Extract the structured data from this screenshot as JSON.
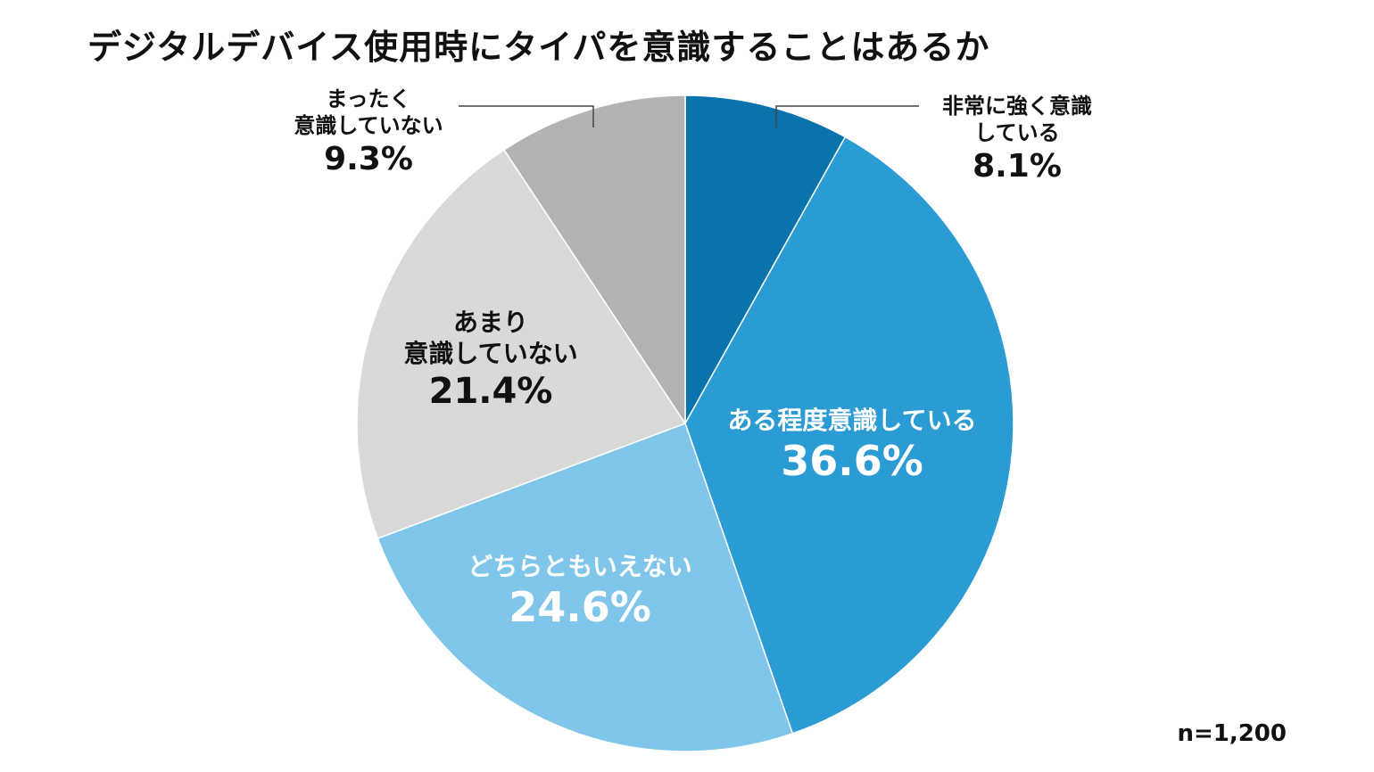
{
  "chart_data": {
    "type": "pie",
    "title": "デジタルデバイス使用時にタイパを意識することはあるか",
    "sample_size": "n=1,200",
    "slices": [
      {
        "label_lines": [
          "非常に強く意識",
          "している"
        ],
        "value": 8.1,
        "value_text": "8.1%",
        "color": "#0874ab"
      },
      {
        "label_lines": [
          "ある程度意識している"
        ],
        "value": 36.6,
        "value_text": "36.6%",
        "color": "#2b9bd4"
      },
      {
        "label_lines": [
          "どちらともいえない"
        ],
        "value": 24.6,
        "value_text": "24.6%",
        "color": "#7fc6ea"
      },
      {
        "label_lines": [
          "あまり",
          "意識していない"
        ],
        "value": 21.4,
        "value_text": "21.4%",
        "color": "#d9d9d9"
      },
      {
        "label_lines": [
          "まったく",
          "意識していない"
        ],
        "value": 9.3,
        "value_text": "9.3%",
        "color": "#b3b3b3"
      }
    ]
  }
}
